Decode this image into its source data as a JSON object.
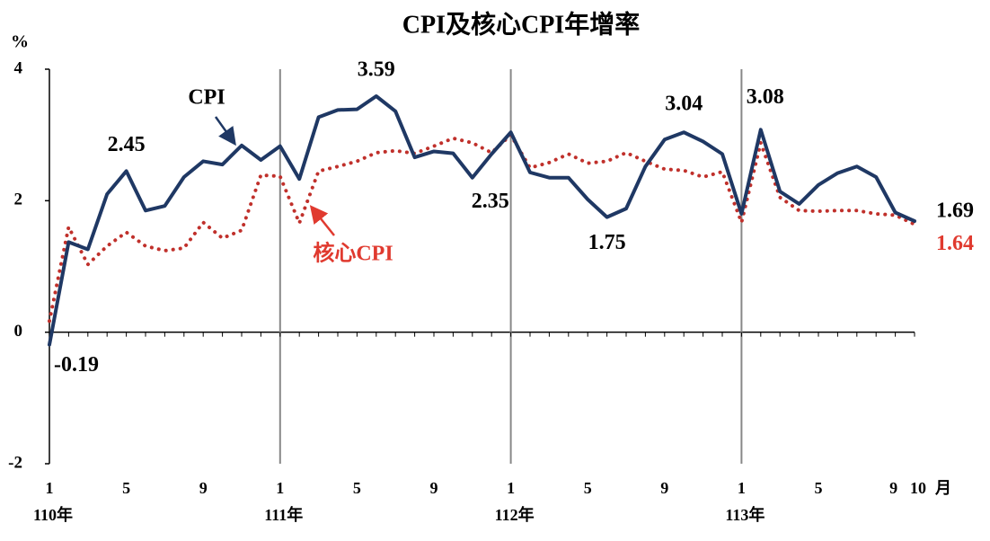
{
  "chart_data": {
    "type": "line",
    "title": "CPI及核心CPI年增率",
    "y_unit": "%",
    "x_unit": "月",
    "categories": [
      "1",
      null,
      null,
      null,
      "5",
      null,
      null,
      null,
      "9",
      null,
      null,
      null,
      "1",
      null,
      null,
      null,
      "5",
      null,
      null,
      null,
      "9",
      null,
      null,
      null,
      "1",
      null,
      null,
      null,
      "5",
      null,
      null,
      null,
      "9",
      null,
      null,
      null,
      "1",
      null,
      null,
      null,
      "5",
      null,
      null,
      null,
      "9",
      "10"
    ],
    "years": [
      "110年",
      "111年",
      "112年",
      "113年"
    ],
    "series": [
      {
        "name": "CPI",
        "color": "#1f3864",
        "style": "solid",
        "values": [
          -0.19,
          1.37,
          1.26,
          2.1,
          2.45,
          1.85,
          1.92,
          2.36,
          2.6,
          2.55,
          2.84,
          2.62,
          2.83,
          2.33,
          3.27,
          3.38,
          3.39,
          3.59,
          3.36,
          2.66,
          2.75,
          2.72,
          2.35,
          2.71,
          3.04,
          2.43,
          2.35,
          2.35,
          2.02,
          1.75,
          1.88,
          2.52,
          2.93,
          3.04,
          2.9,
          2.71,
          1.8,
          3.08,
          2.14,
          1.95,
          2.24,
          2.42,
          2.52,
          2.36,
          1.82,
          1.69
        ]
      },
      {
        "name": "核心CPI",
        "color": "#c0302b",
        "style": "dotted",
        "values": [
          0.17,
          1.6,
          1.03,
          1.31,
          1.52,
          1.31,
          1.24,
          1.28,
          1.67,
          1.43,
          1.55,
          2.39,
          2.37,
          1.66,
          2.45,
          2.52,
          2.6,
          2.73,
          2.76,
          2.72,
          2.83,
          2.95,
          2.88,
          2.73,
          3.0,
          2.5,
          2.58,
          2.71,
          2.57,
          2.6,
          2.73,
          2.6,
          2.48,
          2.46,
          2.36,
          2.44,
          1.67,
          2.88,
          2.05,
          1.85,
          1.84,
          1.85,
          1.85,
          1.8,
          1.78,
          1.64
        ]
      }
    ],
    "ylim": [
      -2,
      4
    ],
    "yticks": [
      -2,
      0,
      2,
      4
    ],
    "grid": false,
    "annotations": [
      "CPI",
      "核心CPI"
    ]
  }
}
